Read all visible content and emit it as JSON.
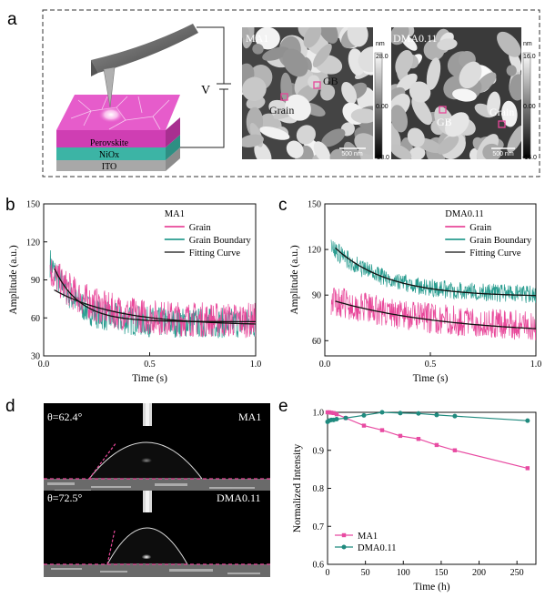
{
  "panel_labels": [
    "a",
    "b",
    "c",
    "d",
    "e"
  ],
  "schematic": {
    "layers": [
      "Perovskite",
      "NiOx",
      "ITO"
    ],
    "voltage_label": "V"
  },
  "afm": [
    {
      "sample": "MA1",
      "gb_label": "GB",
      "grain_label": "Grain",
      "colorbar_unit": "nm",
      "colorbar_ticks": [
        "28.0",
        "0.00",
        "-28.0"
      ],
      "scale_text": "500 nm"
    },
    {
      "sample": "DMA0.11",
      "gb_label": "GB",
      "grain_label": "Grain",
      "colorbar_unit": "nm",
      "colorbar_ticks": [
        "16.0",
        "0.00",
        "-16.0"
      ],
      "scale_text": "500 nm"
    }
  ],
  "colors": {
    "grain": "#e8489a",
    "grain_boundary": "#2a9d90",
    "fit": "#111111",
    "ma1": "#e84ba2",
    "dma": "#1f8a7e",
    "perovskite_top": "#e65ccb",
    "nio": "#3cb4a5",
    "ito": "#c8c8c8"
  },
  "chart_data": [
    {
      "id": "b",
      "type": "line",
      "title": "MA1",
      "xlabel": "Time (s)",
      "ylabel": "Amplitude (a.u.)",
      "xlim": [
        0,
        1.0
      ],
      "ylim": [
        30,
        150
      ],
      "xticks": [
        "0.0",
        "0.5",
        "1.0"
      ],
      "yticks": [
        "30",
        "60",
        "90",
        "120",
        "150"
      ],
      "legend": [
        "Grain",
        "Grain Boundary",
        "Fitting Curve"
      ],
      "series": [
        {
          "name": "Grain",
          "kind": "noisy-decay",
          "a": 40,
          "tau": 0.18,
          "c": 58,
          "noise": 14
        },
        {
          "name": "Grain Boundary",
          "kind": "noisy-decay",
          "a": 48,
          "tau": 0.12,
          "c": 56,
          "noise": 12
        },
        {
          "name": "Fitting Curve",
          "kind": "fits",
          "curves": [
            {
              "a": 42,
              "tau": 0.12,
              "c": 57
            },
            {
              "a": 28,
              "tau": 0.3,
              "c": 54
            }
          ]
        }
      ]
    },
    {
      "id": "c",
      "type": "line",
      "title": "DMA0.11",
      "xlabel": "Time (s)",
      "ylabel": "Amplitude (a.u.)",
      "xlim": [
        0,
        1.0
      ],
      "ylim": [
        50,
        150
      ],
      "xticks": [
        "0.0",
        "0.5",
        "1.0"
      ],
      "yticks": [
        "60",
        "90",
        "120",
        "150"
      ],
      "legend": [
        "Grain",
        "Grain Boundary",
        "Fitting Curve"
      ],
      "series": [
        {
          "name": "Grain",
          "kind": "noisy-decay",
          "a": 20,
          "tau": 0.5,
          "c": 67,
          "noise": 10
        },
        {
          "name": "Grain Boundary",
          "kind": "noisy-decay",
          "a": 32,
          "tau": 0.25,
          "c": 90,
          "noise": 6
        },
        {
          "name": "Fitting Curve",
          "kind": "fits",
          "curves": [
            {
              "a": 32,
              "tau": 0.25,
              "c": 89
            },
            {
              "a": 22,
              "tau": 0.55,
              "c": 64
            }
          ]
        }
      ]
    },
    {
      "id": "e",
      "type": "line",
      "xlabel": "Time (h)",
      "ylabel": "Normalized Intensity",
      "xlim": [
        0,
        275
      ],
      "ylim": [
        0.6,
        1.0
      ],
      "xticks": [
        "0",
        "50",
        "100",
        "150",
        "200",
        "250"
      ],
      "yticks": [
        "0.6",
        "0.7",
        "0.8",
        "0.9",
        "1.0"
      ],
      "legend": [
        "MA1",
        "DMA0.11"
      ],
      "series": [
        {
          "name": "MA1",
          "x": [
            0,
            2,
            5,
            8,
            12,
            24,
            48,
            72,
            96,
            120,
            144,
            168,
            264
          ],
          "y": [
            1.0,
            1.0,
            0.999,
            0.998,
            0.995,
            0.985,
            0.965,
            0.953,
            0.938,
            0.93,
            0.914,
            0.9,
            0.853
          ]
        },
        {
          "name": "DMA0.11",
          "x": [
            0,
            2,
            5,
            8,
            12,
            24,
            48,
            72,
            96,
            120,
            144,
            168,
            264
          ],
          "y": [
            0.975,
            0.978,
            0.98,
            0.98,
            0.982,
            0.985,
            0.992,
            1.0,
            0.998,
            0.997,
            0.993,
            0.99,
            0.978
          ]
        }
      ]
    }
  ],
  "contact_angle": [
    {
      "angle": "θ=62.4°",
      "sample": "MA1"
    },
    {
      "angle": "θ=72.5°",
      "sample": "DMA0.11"
    }
  ]
}
